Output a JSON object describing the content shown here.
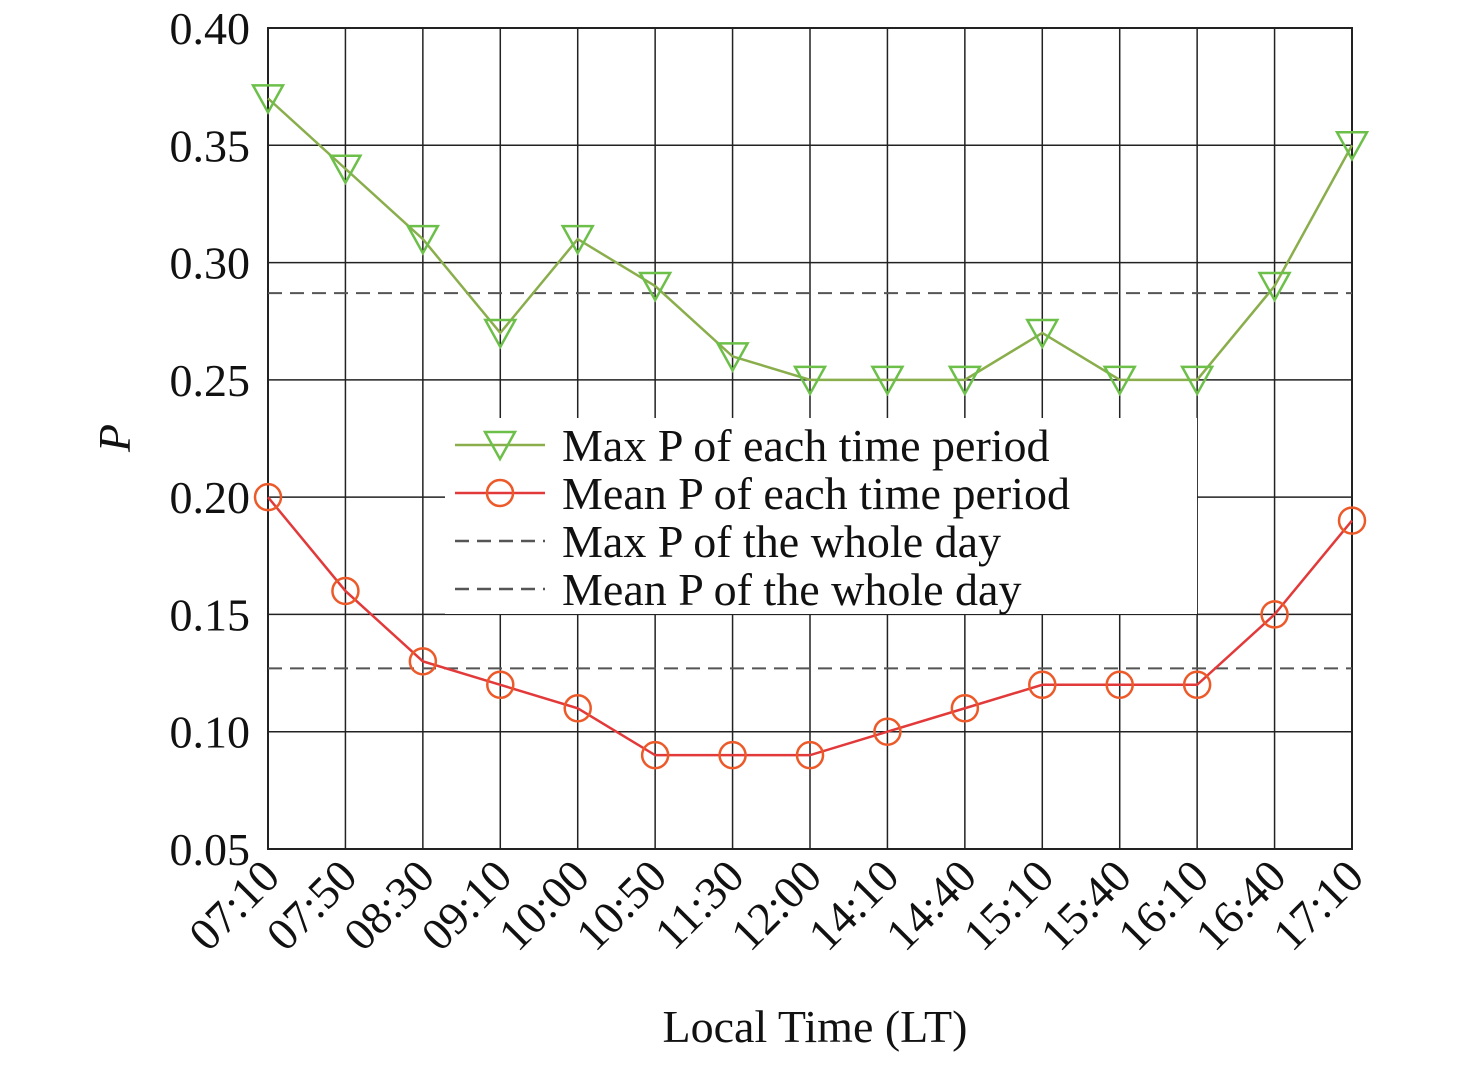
{
  "chart_data": {
    "type": "line",
    "x_label": "Local Time (LT)",
    "y_label": "P",
    "categories": [
      "07:10",
      "07:50",
      "08:30",
      "09:10",
      "10:00",
      "10:50",
      "11:30",
      "12:00",
      "14:10",
      "14:40",
      "15:10",
      "15:40",
      "16:10",
      "16:40",
      "17:10"
    ],
    "series": [
      {
        "name": "Max P of each time period",
        "color": "#8aae4c",
        "marker_color": "#6cc04a",
        "marker": "triangle-down",
        "values": [
          0.37,
          0.34,
          0.31,
          0.27,
          0.31,
          0.29,
          0.26,
          0.25,
          0.25,
          0.25,
          0.27,
          0.25,
          0.25,
          0.29,
          0.35
        ]
      },
      {
        "name": "Mean P of each time period",
        "color": "#e23a3a",
        "marker_color": "#ec5a2a",
        "marker": "circle",
        "values": [
          0.2,
          0.16,
          0.13,
          0.12,
          0.11,
          0.09,
          0.09,
          0.09,
          0.1,
          0.11,
          0.12,
          0.12,
          0.12,
          0.15,
          0.19
        ]
      }
    ],
    "reference_lines": [
      {
        "name": "Max P of the whole day",
        "value": 0.287,
        "color": "#555555"
      },
      {
        "name": "Mean P of the whole day",
        "value": 0.127,
        "color": "#555555"
      }
    ],
    "ylim": [
      0.05,
      0.4
    ],
    "yticks": [
      {
        "value": 0.05,
        "label": "0.05"
      },
      {
        "value": 0.1,
        "label": "0.10"
      },
      {
        "value": 0.15,
        "label": "0.15"
      },
      {
        "value": 0.2,
        "label": "0.20"
      },
      {
        "value": 0.25,
        "label": "0.25"
      },
      {
        "value": 0.3,
        "label": "0.30"
      },
      {
        "value": 0.35,
        "label": "0.35"
      },
      {
        "value": 0.4,
        "label": "0.40"
      }
    ],
    "grid": true
  }
}
